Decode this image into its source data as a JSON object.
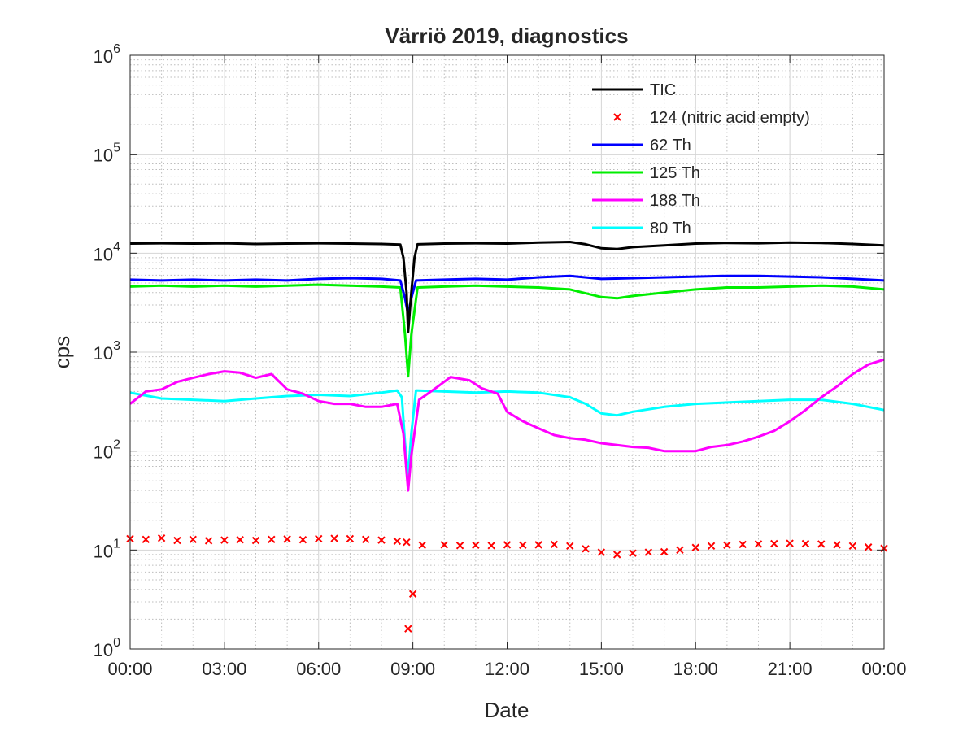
{
  "chart_data": {
    "type": "line",
    "title": "Värriö 2019, diagnostics",
    "xlabel": "Date",
    "ylabel": "cps",
    "yscale": "log",
    "ylim": [
      1,
      1000000
    ],
    "xlim_hours": [
      0,
      24
    ],
    "x_ticks": [
      {
        "hour": 0,
        "label": "00:00"
      },
      {
        "hour": 3,
        "label": "03:00"
      },
      {
        "hour": 6,
        "label": "06:00"
      },
      {
        "hour": 9,
        "label": "09:00"
      },
      {
        "hour": 12,
        "label": "12:00"
      },
      {
        "hour": 15,
        "label": "15:00"
      },
      {
        "hour": 18,
        "label": "18:00"
      },
      {
        "hour": 21,
        "label": "21:00"
      },
      {
        "hour": 24,
        "label": "00:00"
      }
    ],
    "y_ticks": [
      {
        "value": 1,
        "base": "10",
        "exp": "0"
      },
      {
        "value": 10,
        "base": "10",
        "exp": "1"
      },
      {
        "value": 100,
        "base": "10",
        "exp": "2"
      },
      {
        "value": 1000,
        "base": "10",
        "exp": "3"
      },
      {
        "value": 10000,
        "base": "10",
        "exp": "4"
      },
      {
        "value": 100000,
        "base": "10",
        "exp": "5"
      },
      {
        "value": 1000000,
        "base": "10",
        "exp": "6"
      }
    ],
    "grid": true,
    "minor_grid": true,
    "legend_position": "top-right",
    "series": [
      {
        "name": "TIC",
        "color": "#000000",
        "style": "line",
        "points": [
          [
            0,
            12500
          ],
          [
            1,
            12600
          ],
          [
            2,
            12500
          ],
          [
            3,
            12600
          ],
          [
            4,
            12400
          ],
          [
            5,
            12500
          ],
          [
            6,
            12600
          ],
          [
            7,
            12500
          ],
          [
            8,
            12400
          ],
          [
            8.6,
            12200
          ],
          [
            8.7,
            9000
          ],
          [
            8.8,
            4000
          ],
          [
            8.85,
            1600
          ],
          [
            8.95,
            4000
          ],
          [
            9.05,
            9000
          ],
          [
            9.15,
            12300
          ],
          [
            10,
            12500
          ],
          [
            11,
            12600
          ],
          [
            12,
            12500
          ],
          [
            13,
            12800
          ],
          [
            14,
            13000
          ],
          [
            14.5,
            12300
          ],
          [
            15,
            11200
          ],
          [
            15.5,
            11000
          ],
          [
            16,
            11500
          ],
          [
            17,
            12000
          ],
          [
            18,
            12500
          ],
          [
            19,
            12700
          ],
          [
            20,
            12600
          ],
          [
            21,
            12800
          ],
          [
            22,
            12700
          ],
          [
            23,
            12400
          ],
          [
            24,
            12000
          ]
        ]
      },
      {
        "name": "124 (nitric acid empty)",
        "color": "#ff0000",
        "style": "marker",
        "points": [
          [
            0,
            13
          ],
          [
            0.5,
            12.8
          ],
          [
            1,
            13.2
          ],
          [
            1.5,
            12.5
          ],
          [
            2,
            12.8
          ],
          [
            2.5,
            12.4
          ],
          [
            3,
            12.6
          ],
          [
            3.5,
            12.7
          ],
          [
            4,
            12.5
          ],
          [
            4.5,
            12.8
          ],
          [
            5,
            12.9
          ],
          [
            5.5,
            12.7
          ],
          [
            6,
            13
          ],
          [
            6.5,
            13.1
          ],
          [
            7,
            13
          ],
          [
            7.5,
            12.8
          ],
          [
            8,
            12.6
          ],
          [
            8.5,
            12.3
          ],
          [
            8.8,
            12
          ],
          [
            8.85,
            1.6
          ],
          [
            9,
            3.6
          ],
          [
            9.3,
            11.2
          ],
          [
            10,
            11.3
          ],
          [
            10.5,
            11.1
          ],
          [
            11,
            11.2
          ],
          [
            11.5,
            11.1
          ],
          [
            12,
            11.3
          ],
          [
            12.5,
            11.2
          ],
          [
            13,
            11.3
          ],
          [
            13.5,
            11.4
          ],
          [
            14,
            11
          ],
          [
            14.5,
            10.3
          ],
          [
            15,
            9.5
          ],
          [
            15.5,
            9
          ],
          [
            16,
            9.3
          ],
          [
            16.5,
            9.5
          ],
          [
            17,
            9.6
          ],
          [
            17.5,
            10
          ],
          [
            18,
            10.6
          ],
          [
            18.5,
            11
          ],
          [
            19,
            11.2
          ],
          [
            19.5,
            11.4
          ],
          [
            20,
            11.5
          ],
          [
            20.5,
            11.6
          ],
          [
            21,
            11.7
          ],
          [
            21.5,
            11.6
          ],
          [
            22,
            11.5
          ],
          [
            22.5,
            11.3
          ],
          [
            23,
            11
          ],
          [
            23.5,
            10.7
          ],
          [
            24,
            10.4
          ]
        ]
      },
      {
        "name": "62 Th",
        "color": "#0000ff",
        "style": "line",
        "points": [
          [
            0,
            5400
          ],
          [
            1,
            5300
          ],
          [
            2,
            5400
          ],
          [
            3,
            5300
          ],
          [
            4,
            5400
          ],
          [
            5,
            5300
          ],
          [
            6,
            5500
          ],
          [
            7,
            5600
          ],
          [
            8,
            5500
          ],
          [
            8.6,
            5300
          ],
          [
            8.75,
            3500
          ],
          [
            8.85,
            2400
          ],
          [
            8.95,
            3500
          ],
          [
            9.1,
            5300
          ],
          [
            10,
            5400
          ],
          [
            11,
            5500
          ],
          [
            12,
            5400
          ],
          [
            13,
            5700
          ],
          [
            14,
            5900
          ],
          [
            15,
            5500
          ],
          [
            16,
            5600
          ],
          [
            17,
            5700
          ],
          [
            18,
            5800
          ],
          [
            19,
            5900
          ],
          [
            20,
            5900
          ],
          [
            21,
            5800
          ],
          [
            22,
            5700
          ],
          [
            23,
            5500
          ],
          [
            24,
            5300
          ]
        ]
      },
      {
        "name": "125 Th",
        "color": "#00ee00",
        "style": "line",
        "points": [
          [
            0,
            4600
          ],
          [
            1,
            4700
          ],
          [
            2,
            4600
          ],
          [
            3,
            4700
          ],
          [
            4,
            4600
          ],
          [
            5,
            4700
          ],
          [
            6,
            4800
          ],
          [
            7,
            4700
          ],
          [
            8,
            4600
          ],
          [
            8.6,
            4500
          ],
          [
            8.75,
            1500
          ],
          [
            8.85,
            570
          ],
          [
            8.95,
            1500
          ],
          [
            9.15,
            4500
          ],
          [
            10,
            4600
          ],
          [
            11,
            4700
          ],
          [
            12,
            4600
          ],
          [
            13,
            4500
          ],
          [
            14,
            4300
          ],
          [
            15,
            3600
          ],
          [
            15.5,
            3500
          ],
          [
            16,
            3700
          ],
          [
            17,
            4000
          ],
          [
            18,
            4300
          ],
          [
            19,
            4500
          ],
          [
            20,
            4500
          ],
          [
            21,
            4600
          ],
          [
            22,
            4700
          ],
          [
            23,
            4600
          ],
          [
            24,
            4300
          ]
        ]
      },
      {
        "name": "188 Th",
        "color": "#ff00ff",
        "style": "line",
        "points": [
          [
            0,
            300
          ],
          [
            0.5,
            400
          ],
          [
            1,
            420
          ],
          [
            1.5,
            500
          ],
          [
            2,
            550
          ],
          [
            2.5,
            600
          ],
          [
            3,
            640
          ],
          [
            3.5,
            620
          ],
          [
            4,
            550
          ],
          [
            4.5,
            600
          ],
          [
            5,
            420
          ],
          [
            5.5,
            380
          ],
          [
            6,
            320
          ],
          [
            6.5,
            300
          ],
          [
            7,
            300
          ],
          [
            7.5,
            280
          ],
          [
            8,
            280
          ],
          [
            8.5,
            300
          ],
          [
            8.7,
            150
          ],
          [
            8.85,
            40
          ],
          [
            8.95,
            90
          ],
          [
            9.2,
            330
          ],
          [
            9.8,
            450
          ],
          [
            10.2,
            560
          ],
          [
            10.8,
            520
          ],
          [
            11.2,
            430
          ],
          [
            11.7,
            380
          ],
          [
            12,
            250
          ],
          [
            12.5,
            200
          ],
          [
            13,
            170
          ],
          [
            13.5,
            145
          ],
          [
            14,
            135
          ],
          [
            14.5,
            130
          ],
          [
            15,
            120
          ],
          [
            15.5,
            115
          ],
          [
            16,
            110
          ],
          [
            16.5,
            108
          ],
          [
            17,
            100
          ],
          [
            17.5,
            100
          ],
          [
            18,
            100
          ],
          [
            18.5,
            110
          ],
          [
            19,
            115
          ],
          [
            19.5,
            125
          ],
          [
            20,
            140
          ],
          [
            20.5,
            160
          ],
          [
            21,
            200
          ],
          [
            21.5,
            260
          ],
          [
            22,
            350
          ],
          [
            22.5,
            450
          ],
          [
            23,
            600
          ],
          [
            23.5,
            750
          ],
          [
            24,
            840
          ]
        ]
      },
      {
        "name": "80 Th",
        "color": "#00ffff",
        "style": "line",
        "points": [
          [
            0,
            390
          ],
          [
            1,
            340
          ],
          [
            2,
            330
          ],
          [
            3,
            320
          ],
          [
            4,
            340
          ],
          [
            5,
            360
          ],
          [
            6,
            370
          ],
          [
            7,
            360
          ],
          [
            8,
            390
          ],
          [
            8.5,
            410
          ],
          [
            8.65,
            350
          ],
          [
            8.75,
            120
          ],
          [
            8.85,
            55
          ],
          [
            8.95,
            150
          ],
          [
            9.1,
            410
          ],
          [
            10,
            400
          ],
          [
            11,
            390
          ],
          [
            12,
            400
          ],
          [
            13,
            390
          ],
          [
            14,
            350
          ],
          [
            14.5,
            300
          ],
          [
            15,
            240
          ],
          [
            15.5,
            230
          ],
          [
            16,
            250
          ],
          [
            17,
            280
          ],
          [
            18,
            300
          ],
          [
            19,
            310
          ],
          [
            20,
            320
          ],
          [
            21,
            330
          ],
          [
            22,
            330
          ],
          [
            23,
            300
          ],
          [
            24,
            260
          ]
        ]
      }
    ]
  }
}
